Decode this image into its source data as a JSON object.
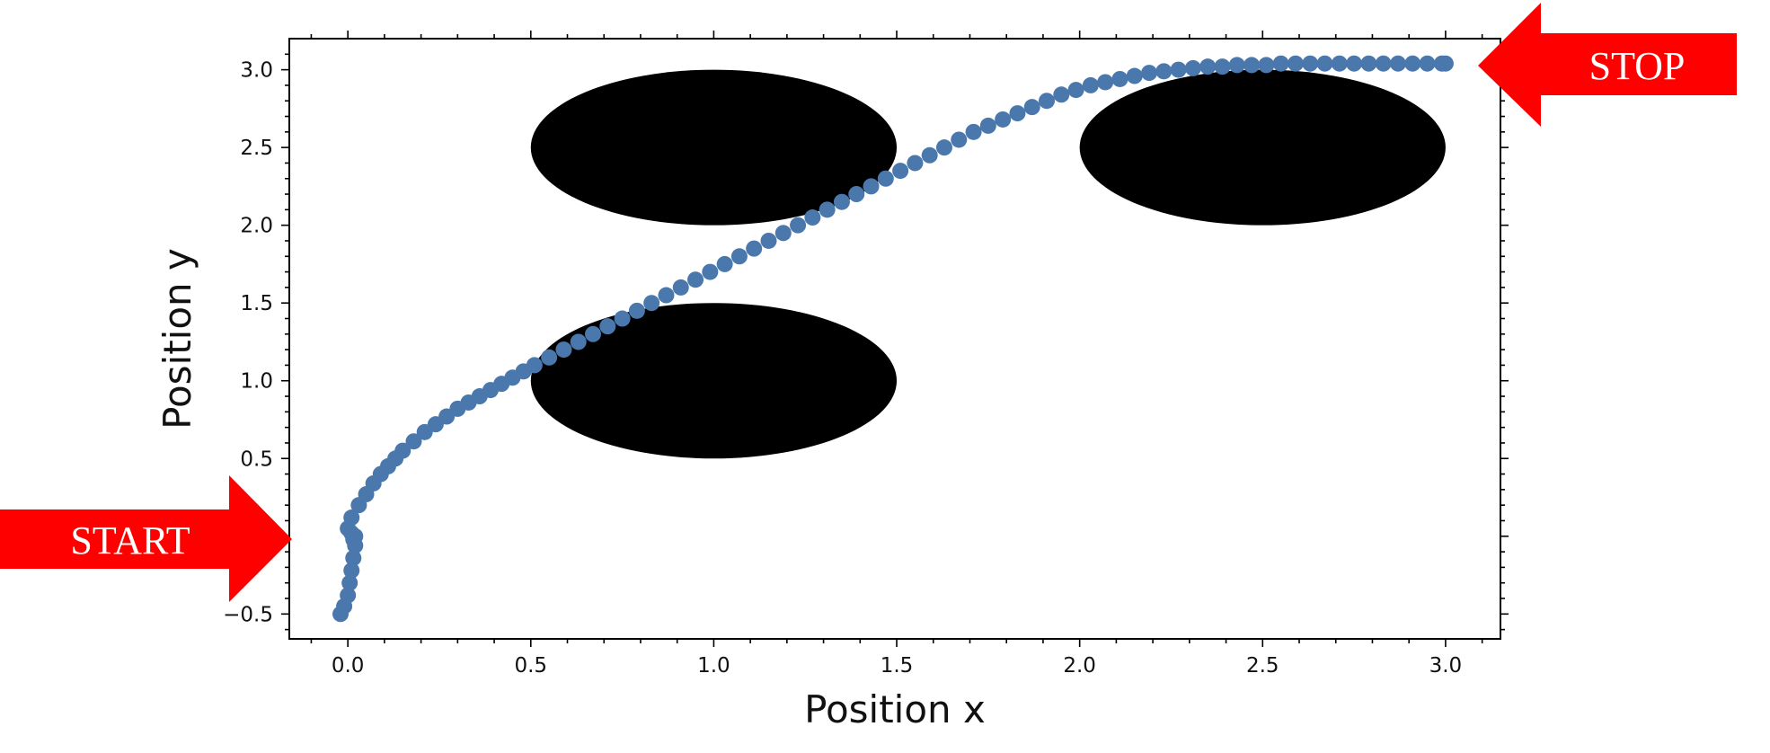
{
  "chart_data": {
    "type": "scatter",
    "title": "",
    "xlabel": "Position x",
    "ylabel": "Position y",
    "xlim": [
      -0.16,
      3.15
    ],
    "ylim": [
      -0.66,
      3.2
    ],
    "x_ticks": [
      0.0,
      0.5,
      1.0,
      1.5,
      2.0,
      2.5,
      3.0
    ],
    "x_tick_labels": [
      "0.0",
      "0.5",
      "1.0",
      "1.5",
      "2.0",
      "2.5",
      "3.0"
    ],
    "y_ticks": [
      -0.5,
      0.0,
      0.5,
      1.0,
      1.5,
      2.0,
      2.5,
      3.0
    ],
    "y_tick_labels": [
      "−0.5",
      "",
      "0.5",
      "1.0",
      "1.5",
      "2.0",
      "2.5",
      "3.0"
    ],
    "grid": false,
    "series_color": "#4a78ad",
    "obstacle_color": "#000000",
    "obstacles": [
      {
        "cx": 1.0,
        "cy": 2.5,
        "rx": 0.5,
        "ry": 0.5
      },
      {
        "cx": 1.0,
        "cy": 1.0,
        "rx": 0.5,
        "ry": 0.5
      },
      {
        "cx": 2.5,
        "cy": 2.5,
        "rx": 0.5,
        "ry": 0.5
      }
    ],
    "series": [
      {
        "x": [
          -0.02,
          -0.01,
          0.0,
          0.005,
          0.01,
          0.015,
          0.02,
          0.02,
          0.015,
          0.01,
          0.0,
          0.01,
          0.03,
          0.05,
          0.07,
          0.09,
          0.11,
          0.13,
          0.15,
          0.18,
          0.21,
          0.24,
          0.27,
          0.3,
          0.33,
          0.36,
          0.39,
          0.42,
          0.45,
          0.48,
          0.51,
          0.55,
          0.59,
          0.63,
          0.67,
          0.71,
          0.75,
          0.79,
          0.83,
          0.87,
          0.91,
          0.95,
          0.99,
          1.03,
          1.07,
          1.11,
          1.15,
          1.19,
          1.23,
          1.27,
          1.31,
          1.35,
          1.39,
          1.43,
          1.47,
          1.51,
          1.55,
          1.59,
          1.63,
          1.67,
          1.71,
          1.75,
          1.79,
          1.83,
          1.87,
          1.91,
          1.95,
          1.99,
          2.03,
          2.07,
          2.11,
          2.15,
          2.19,
          2.23,
          2.27,
          2.31,
          2.35,
          2.39,
          2.43,
          2.47,
          2.51,
          2.55,
          2.59,
          2.63,
          2.67,
          2.71,
          2.75,
          2.79,
          2.83,
          2.87,
          2.91,
          2.95,
          2.99,
          3.0
        ],
        "y": [
          -0.5,
          -0.45,
          -0.38,
          -0.3,
          -0.22,
          -0.14,
          -0.06,
          0.0,
          -0.02,
          0.02,
          0.05,
          0.12,
          0.2,
          0.27,
          0.34,
          0.4,
          0.45,
          0.5,
          0.55,
          0.61,
          0.67,
          0.72,
          0.77,
          0.82,
          0.86,
          0.9,
          0.94,
          0.98,
          1.02,
          1.06,
          1.1,
          1.15,
          1.2,
          1.25,
          1.3,
          1.35,
          1.4,
          1.45,
          1.5,
          1.55,
          1.6,
          1.65,
          1.7,
          1.75,
          1.8,
          1.85,
          1.9,
          1.95,
          2.0,
          2.05,
          2.1,
          2.15,
          2.2,
          2.25,
          2.3,
          2.35,
          2.4,
          2.45,
          2.5,
          2.55,
          2.6,
          2.64,
          2.68,
          2.72,
          2.76,
          2.8,
          2.84,
          2.87,
          2.9,
          2.92,
          2.94,
          2.96,
          2.98,
          2.99,
          3.0,
          3.01,
          3.02,
          3.02,
          3.03,
          3.03,
          3.03,
          3.04,
          3.04,
          3.04,
          3.04,
          3.04,
          3.04,
          3.04,
          3.04,
          3.04,
          3.04,
          3.04,
          3.04,
          3.04
        ]
      }
    ]
  },
  "annotations": {
    "start": {
      "label": "START",
      "color": "#ff0000"
    },
    "stop": {
      "label": "STOP",
      "color": "#ff0000"
    }
  }
}
